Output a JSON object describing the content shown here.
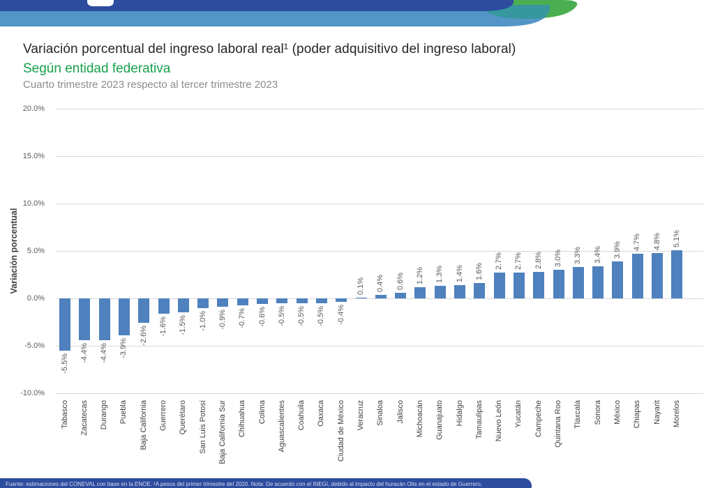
{
  "header": {
    "title": "Variación porcentual del ingreso laboral real¹ (poder adquisitivo del ingreso laboral)",
    "subtitle": "Según entidad federativa",
    "period": "Cuarto trimestre 2023 respecto al tercer trimestre 2023"
  },
  "banner": {
    "dark_blue": "#2D4C9E",
    "light_blue": "#5495C8",
    "green": "#4BAE50",
    "teal": "#36989E"
  },
  "chart_data": {
    "type": "bar",
    "title": "Variación porcentual del ingreso laboral real (poder adquisitivo del ingreso laboral) según entidad federativa, cuarto trimestre 2023 respecto al tercer trimestre 2023",
    "xlabel": "",
    "ylabel": "Variación porcentual",
    "ylim": [
      -10,
      20
    ],
    "grid": true,
    "legend": "none",
    "bar_color": "#4E81BD",
    "value_label_suffix": "%",
    "yticks": [
      {
        "label": "20.0%",
        "value": 20
      },
      {
        "label": "15.0%",
        "value": 15
      },
      {
        "label": "10.0%",
        "value": 10
      },
      {
        "label": "5.0%",
        "value": 5
      },
      {
        "label": "0.0%",
        "value": 0
      },
      {
        "label": "-5.0%",
        "value": -5
      },
      {
        "label": "-10.0%",
        "value": -10
      }
    ],
    "categories": [
      "Tabasco",
      "Zacatecas",
      "Durango",
      "Puebla",
      "Baja California",
      "Guerrero",
      "Querétaro",
      "San Luis Potosí",
      "Baja California Sur",
      "Chihuahua",
      "Colima",
      "Aguascalientes",
      "Coahuila",
      "Oaxaca",
      "Ciudad de México",
      "Veracruz",
      "Sinaloa",
      "Jalisco",
      "Michoacán",
      "Guanajuato",
      "Hidalgo",
      "Tamaulipas",
      "Nuevo León",
      "Yucatán",
      "Campeche",
      "Quintana Roo",
      "Tlaxcala",
      "Sonora",
      "México",
      "Chiapas",
      "Nayarit",
      "Morelos"
    ],
    "values": [
      -5.5,
      -4.4,
      -4.4,
      -3.9,
      -2.6,
      -1.6,
      -1.5,
      -1.0,
      -0.9,
      -0.7,
      -0.6,
      -0.5,
      -0.5,
      -0.5,
      -0.4,
      0.1,
      0.4,
      0.6,
      1.2,
      1.3,
      1.4,
      1.6,
      2.7,
      2.7,
      2.8,
      3.0,
      3.3,
      3.4,
      3.9,
      4.7,
      4.8,
      5.1
    ]
  },
  "footer": {
    "note": "Fuente: estimaciones del CONEVAL con base en la ENOE. ¹A pesos del primer trimestre del 2020. Nota: De acuerdo con el INEGI, debido al impacto del huracán Otis en el estado de Guerrero,"
  }
}
